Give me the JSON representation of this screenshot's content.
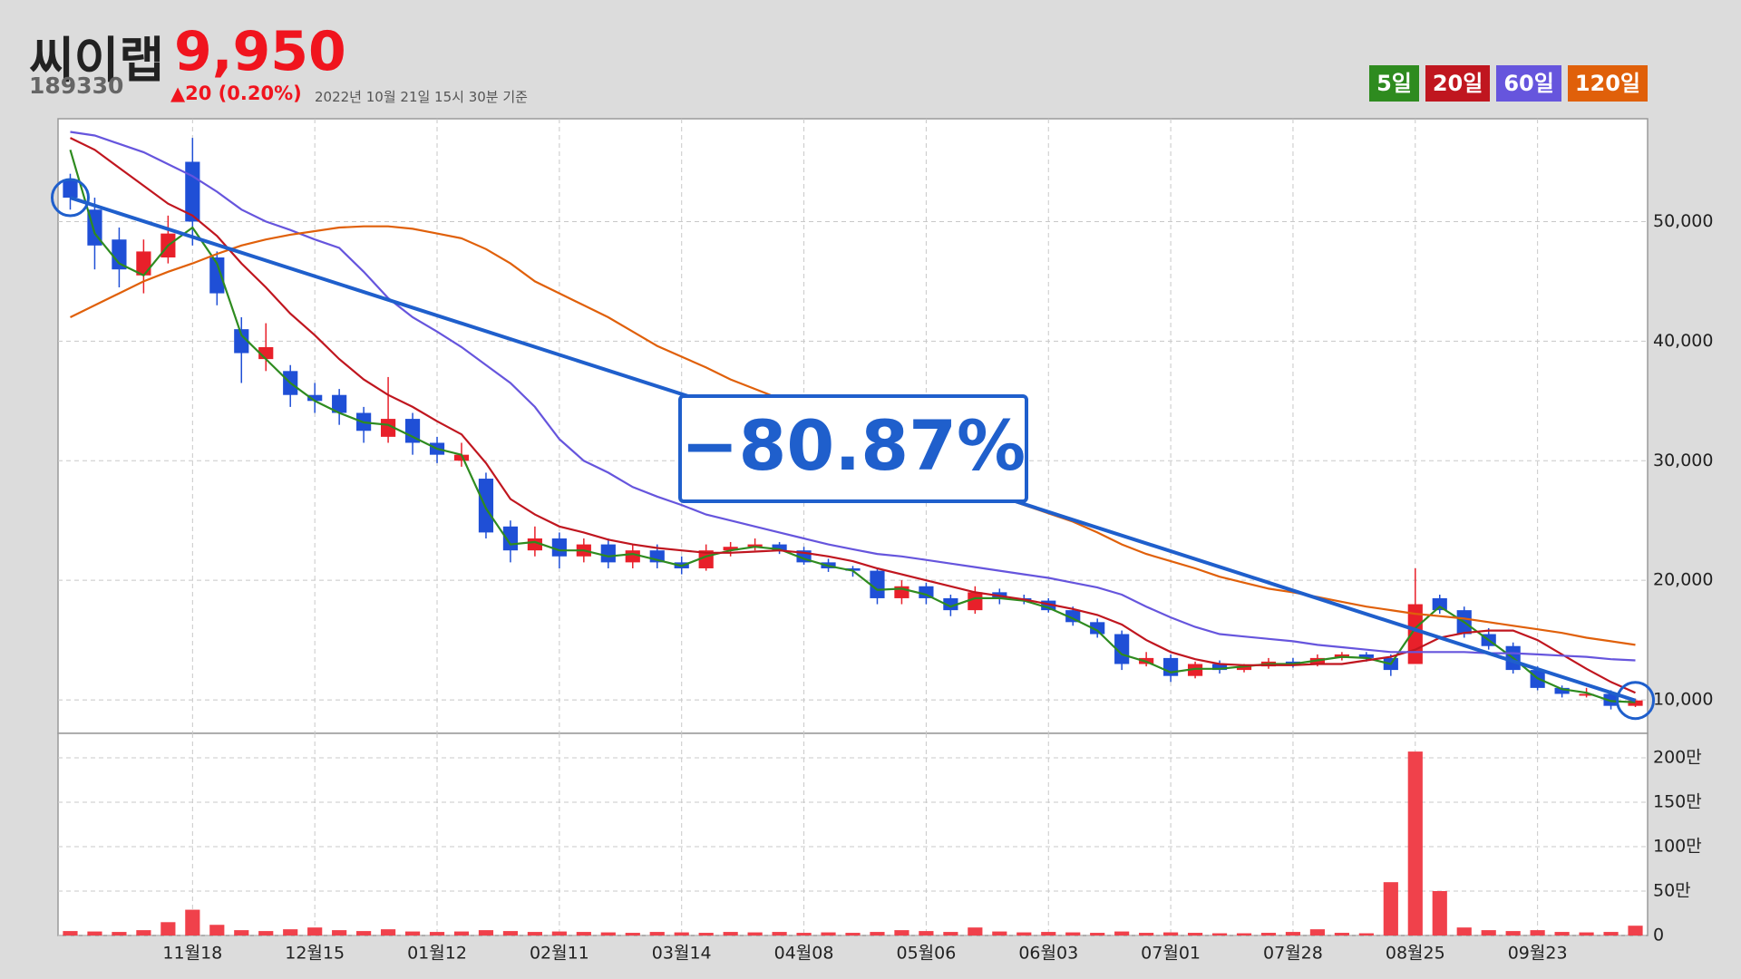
{
  "header": {
    "name": "씨이랩",
    "price": "9,950",
    "code": "189330",
    "change": "▲20 (0.20%)",
    "timestamp": "2022년 10월 21일 15시 30분 기준"
  },
  "chart_data": [
    {
      "type": "candlestick",
      "annotation": "−80.87%",
      "categories": [
        null,
        null,
        null,
        null,
        null,
        "11월18",
        null,
        null,
        null,
        null,
        "12월15",
        null,
        null,
        null,
        null,
        "01월12",
        null,
        null,
        null,
        null,
        "02월11",
        null,
        null,
        null,
        null,
        "03월14",
        null,
        null,
        null,
        null,
        "04월08",
        null,
        null,
        null,
        null,
        "05월06",
        null,
        null,
        null,
        null,
        "06월03",
        null,
        null,
        null,
        null,
        "07월01",
        null,
        null,
        null,
        null,
        "07월28",
        null,
        null,
        null,
        null,
        "08월25",
        null,
        null,
        null,
        null,
        "09월23",
        null,
        null,
        null,
        null
      ],
      "open": [
        53500,
        51000,
        48500,
        45500,
        47000,
        55000,
        47000,
        41000,
        38500,
        37500,
        35500,
        35500,
        34000,
        32000,
        33500,
        31500,
        30000,
        28500,
        24500,
        22500,
        23500,
        22000,
        23000,
        21500,
        22500,
        21500,
        21000,
        22500,
        22800,
        23000,
        22500,
        21500,
        21000,
        20800,
        18500,
        19500,
        18500,
        17500,
        19000,
        18500,
        18300,
        17500,
        16500,
        15500,
        13000,
        13500,
        12000,
        13000,
        12500,
        12800,
        13200,
        13000,
        13500,
        13800,
        13500,
        13000,
        18500,
        17500,
        15500,
        14500,
        12500,
        11000,
        10500,
        10500,
        9500
      ],
      "high": [
        54000,
        52000,
        49500,
        48500,
        50500,
        57000,
        47500,
        42000,
        41500,
        38000,
        36500,
        36000,
        34500,
        37000,
        34000,
        32000,
        31500,
        29000,
        25000,
        24500,
        24000,
        23500,
        23500,
        23000,
        23000,
        22000,
        23000,
        23200,
        23500,
        23200,
        22800,
        21800,
        21200,
        21000,
        20000,
        19800,
        18800,
        19500,
        19300,
        18800,
        18500,
        17800,
        16800,
        15800,
        14000,
        13800,
        13200,
        13300,
        13000,
        13500,
        13500,
        13800,
        14000,
        14000,
        13800,
        21000,
        18800,
        17800,
        16000,
        14800,
        12800,
        11200,
        11000,
        10800,
        10100
      ],
      "low": [
        51000,
        46000,
        44500,
        44000,
        46500,
        48000,
        43000,
        36500,
        37500,
        34500,
        34000,
        33000,
        31500,
        31500,
        30500,
        29800,
        29500,
        23500,
        21500,
        22000,
        21000,
        21500,
        21000,
        21000,
        21000,
        20500,
        20800,
        22000,
        22500,
        22200,
        21300,
        20700,
        20300,
        18000,
        18000,
        18000,
        17000,
        17200,
        18000,
        18000,
        17300,
        16200,
        15200,
        12500,
        12800,
        11500,
        11800,
        12200,
        12300,
        12600,
        12700,
        12800,
        13300,
        13200,
        12000,
        13000,
        17200,
        15200,
        14200,
        12200,
        10800,
        10200,
        10200,
        9200,
        9400
      ],
      "close": [
        52000,
        48000,
        46000,
        47500,
        49000,
        50000,
        44000,
        39000,
        39500,
        35500,
        35000,
        34000,
        32500,
        33500,
        31500,
        30500,
        30500,
        24000,
        22500,
        23500,
        22000,
        23000,
        21500,
        22500,
        21500,
        21000,
        22500,
        22800,
        23000,
        22500,
        21500,
        21000,
        20800,
        18500,
        19500,
        18500,
        17500,
        19000,
        18500,
        18300,
        17500,
        16500,
        15500,
        13000,
        13500,
        12000,
        13000,
        12500,
        12800,
        13200,
        13000,
        13500,
        13800,
        13500,
        12500,
        18000,
        17500,
        15500,
        14500,
        12500,
        11000,
        10500,
        10500,
        9500,
        9950
      ],
      "up_color": "#e8202a",
      "down_color": "#1f4fd6",
      "trend_color": "#1f5fcc",
      "series": [
        {
          "name": "5일",
          "color": "#2e8b1f",
          "values": [
            56000,
            49000,
            46500,
            45500,
            48000,
            49500,
            46500,
            40500,
            38500,
            36500,
            35000,
            34000,
            33200,
            33000,
            32000,
            31000,
            30500,
            26000,
            23000,
            23200,
            22500,
            22500,
            22000,
            22200,
            21700,
            21200,
            22000,
            22500,
            22800,
            22600,
            21800,
            21200,
            20800,
            19200,
            19300,
            18800,
            17800,
            18500,
            18500,
            18300,
            17700,
            16800,
            15800,
            13800,
            13200,
            12300,
            12600,
            12600,
            12800,
            13000,
            13000,
            13300,
            13600,
            13500,
            13000,
            16000,
            17800,
            16500,
            15000,
            13500,
            11800,
            10900,
            10600,
            9900,
            9800
          ]
        },
        {
          "name": "20일",
          "color": "#c0161f",
          "values": [
            57000,
            56000,
            54500,
            53000,
            51500,
            50500,
            48800,
            46500,
            44500,
            42300,
            40500,
            38500,
            36800,
            35500,
            34500,
            33300,
            32200,
            29800,
            26800,
            25500,
            24500,
            24000,
            23400,
            23000,
            22700,
            22500,
            22300,
            22300,
            22400,
            22500,
            22300,
            22000,
            21600,
            21000,
            20500,
            20000,
            19500,
            19000,
            18700,
            18400,
            18000,
            17600,
            17100,
            16300,
            15000,
            14000,
            13400,
            13000,
            12900,
            12900,
            12900,
            13000,
            13000,
            13300,
            13600,
            14200,
            15200,
            15600,
            15800,
            15800,
            15000,
            13800,
            12600,
            11500,
            10600
          ]
        },
        {
          "name": "60일",
          "color": "#6655dd",
          "values": [
            57500,
            57200,
            56500,
            55800,
            54800,
            53800,
            52500,
            51000,
            50000,
            49300,
            48500,
            47800,
            45800,
            43600,
            42000,
            40800,
            39500,
            38000,
            36500,
            34500,
            31800,
            30000,
            29000,
            27800,
            27000,
            26300,
            25500,
            25000,
            24500,
            24000,
            23500,
            23000,
            22600,
            22200,
            22000,
            21700,
            21400,
            21100,
            20800,
            20500,
            20200,
            19800,
            19400,
            18800,
            17800,
            16900,
            16100,
            15500,
            15300,
            15100,
            14900,
            14600,
            14400,
            14200,
            14000,
            14000,
            14000,
            14000,
            13900,
            13900,
            13800,
            13700,
            13600,
            13400,
            13300
          ]
        },
        {
          "name": "120일",
          "color": "#e0600a",
          "values": [
            42000,
            43000,
            44000,
            45000,
            45800,
            46500,
            47300,
            48000,
            48500,
            48900,
            49200,
            49500,
            49600,
            49600,
            49400,
            49000,
            48600,
            47700,
            46500,
            45000,
            44000,
            43000,
            42000,
            40800,
            39600,
            38700,
            37800,
            36800,
            36000,
            35200,
            34400,
            33500,
            32500,
            31400,
            30500,
            29600,
            28800,
            27900,
            27000,
            26300,
            25600,
            24900,
            24000,
            23000,
            22200,
            21600,
            21000,
            20300,
            19800,
            19300,
            19000,
            18600,
            18200,
            17800,
            17500,
            17200,
            17000,
            16800,
            16500,
            16200,
            15900,
            15600,
            15200,
            14900,
            14600
          ]
        }
      ],
      "ylim": [
        7200,
        58600
      ],
      "yticks": [
        {
          "value": 10000,
          "label": "10,000"
        },
        {
          "value": 20000,
          "label": "20,000"
        },
        {
          "value": 30000,
          "label": "30,000"
        },
        {
          "value": 40000,
          "label": "40,000"
        },
        {
          "value": 50000,
          "label": "50,000"
        }
      ],
      "grid": true
    },
    {
      "type": "bar",
      "color": "#f0414b",
      "values": [
        50000,
        45000,
        40000,
        60000,
        150000,
        290000,
        120000,
        60000,
        50000,
        70000,
        90000,
        60000,
        50000,
        70000,
        45000,
        40000,
        45000,
        60000,
        50000,
        40000,
        45000,
        40000,
        35000,
        30000,
        40000,
        35000,
        30000,
        40000,
        35000,
        40000,
        30000,
        35000,
        30000,
        40000,
        60000,
        50000,
        40000,
        90000,
        45000,
        35000,
        40000,
        35000,
        30000,
        45000,
        30000,
        35000,
        30000,
        25000,
        25000,
        30000,
        40000,
        70000,
        30000,
        25000,
        600000,
        2070000,
        500000,
        90000,
        60000,
        50000,
        60000,
        40000,
        35000,
        40000,
        110000
      ],
      "ylim": [
        0,
        2275000
      ],
      "yticks": [
        0,
        {
          "value": 500000,
          "label": "50만"
        },
        {
          "value": 1000000,
          "label": "100만"
        },
        {
          "value": 1500000,
          "label": "150만"
        },
        {
          "value": 2000000,
          "label": "200만"
        }
      ],
      "grid": true
    }
  ]
}
